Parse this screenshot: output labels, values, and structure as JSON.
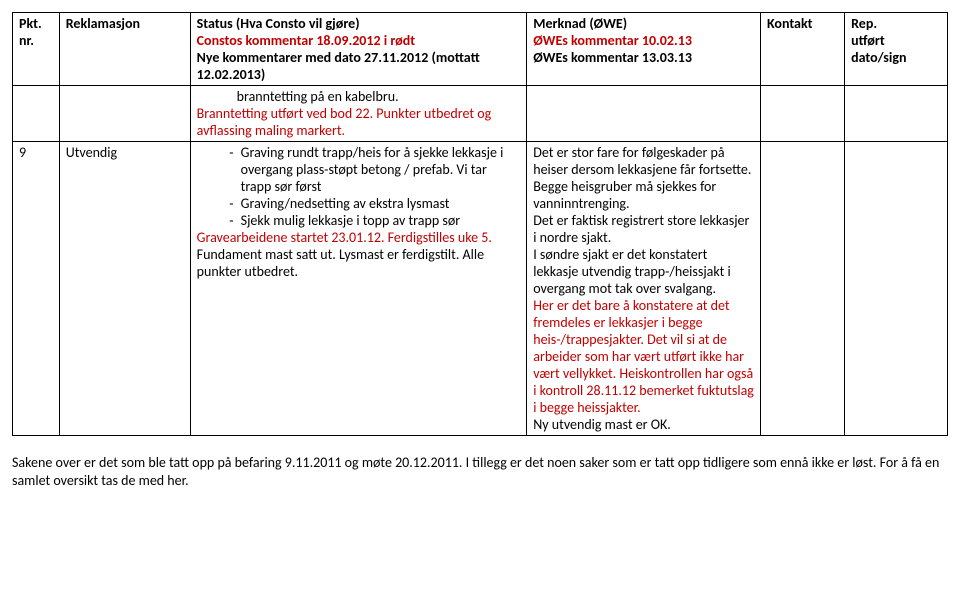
{
  "header": {
    "pkt_l1": "Pkt.",
    "pkt_l2": "nr.",
    "rekl": "Reklamasjon",
    "status_l1": "Status (Hva Consto vil gjøre)",
    "status_l2": "Constos kommentar 18.09.2012 i rødt",
    "status_l3": "Nye kommentarer med dato 27.11.2012 (mottatt 12.02.2013)",
    "merknad_l1": "Merknad (ØWE)",
    "merknad_l2": "ØWEs kommentar 10.02.13",
    "merknad_l3": "ØWEs kommentar 13.03.13",
    "kontakt": "Kontakt",
    "rep_l1": "Rep.",
    "rep_l2": "utført",
    "rep_l3": "dato/sign"
  },
  "row1": {
    "status_l1": "branntetting på en kabelbru.",
    "status_l2": "Branntetting utført ved bod 22. Punkter utbedret og avflassing maling markert."
  },
  "row2": {
    "pkt": "9",
    "rekl": "Utvendig",
    "status_b1": "Graving rundt trapp/heis for å sjekke lekkasje i overgang plass-støpt betong / prefab. Vi tar trapp sør først",
    "status_b2": "Graving/nedsetting av ekstra lysmast",
    "status_b3": "Sjekk mulig lekkasje i topp av trapp sør",
    "status_red": "Gravearbeidene startet 23.01.12. Ferdigstilles uke 5.",
    "status_black": "Fundament mast satt ut. Lysmast er ferdigstilt. Alle punkter utbedret.",
    "merk_p1": "Det er stor fare for følgeskader på heiser dersom lekkasjene får fortsette. Begge heisgruber må sjekkes for vanninntrenging.",
    "merk_p2": "Det er faktisk registrert store lekkasjer i nordre sjakt.",
    "merk_p3": "I søndre sjakt er det konstatert lekkasje utvendig trapp-/heissjakt i overgang mot tak over svalgang.",
    "merk_red": "Her er det bare å konstatere at det fremdeles er lekkasjer i begge heis-/trappesjakter. Det vil si at de arbeider som har vært utført ikke har vært vellykket. Heiskontrollen har også i kontroll 28.11.12 bemerket fuktutslag i begge heissjakter.",
    "merk_ok": "Ny utvendig mast er OK."
  },
  "footer": "Sakene over er det som ble tatt opp på befaring 9.11.2011 og møte 20.12.2011. I tillegg er det noen saker som er tatt opp tidligere som ennå ikke er løst. For å få en samlet oversikt tas de med her."
}
